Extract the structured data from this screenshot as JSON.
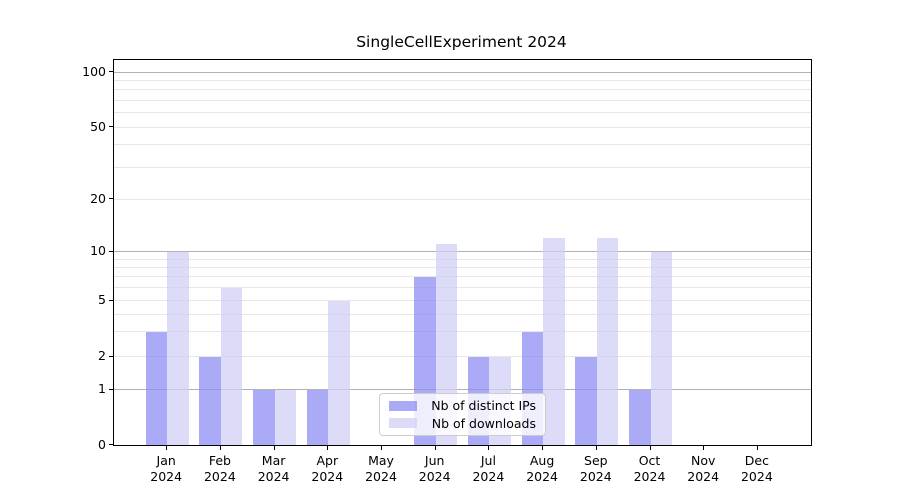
{
  "title": "SingleCellExperiment 2024",
  "chart_data": {
    "type": "bar",
    "title": "SingleCellExperiment 2024",
    "categories": [
      "Jan",
      "Feb",
      "Mar",
      "Apr",
      "May",
      "Jun",
      "Jul",
      "Aug",
      "Sep",
      "Oct",
      "Nov",
      "Dec"
    ],
    "year_label": "2024",
    "series": [
      {
        "name": "Nb of distinct IPs",
        "color": "rgba(137,137,243,0.72)",
        "values": [
          3,
          2,
          1,
          1,
          0,
          7,
          2,
          3,
          2,
          1,
          0,
          0
        ]
      },
      {
        "name": "Nb of downloads",
        "color": "rgba(206,206,246,0.72)",
        "values": [
          10,
          6,
          1,
          5,
          0,
          11,
          2,
          12,
          12,
          10,
          0,
          0
        ]
      }
    ],
    "yticks": [
      0,
      1,
      2,
      5,
      10,
      20,
      50,
      100
    ],
    "ylim": [
      0,
      100
    ],
    "yscale": "symlog (linear 0-1, log 1-100)",
    "xlabel": "",
    "ylabel": "",
    "grid": {
      "orientation": "horizontal",
      "major_values": [
        1,
        10,
        100
      ],
      "minor_values": [
        2,
        3,
        4,
        5,
        6,
        7,
        8,
        9,
        20,
        30,
        40,
        50,
        60,
        70,
        80,
        90
      ],
      "major_color": "#b2b2b2",
      "minor_color": "#e7e7e7"
    },
    "legend": {
      "position": "lower center",
      "labels": [
        "Nb of distinct IPs",
        "Nb of downloads"
      ]
    }
  },
  "colors": {
    "background": "#ffffff",
    "axis": "#000000",
    "text": "#000000",
    "bar_dark_hex": "#aaaaf5",
    "bar_light_hex": "#dcdcf8"
  }
}
